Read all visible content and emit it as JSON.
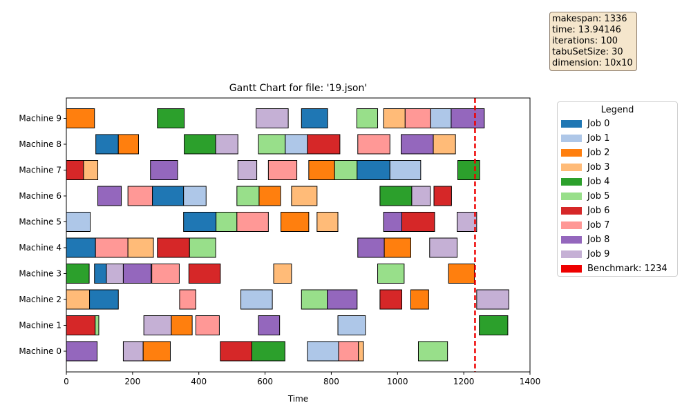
{
  "info": {
    "makespan": "makespan: 1336",
    "time": "time: 13.94146",
    "iterations": "iterations: 100",
    "tabuSetSize": "tabuSetSize: 30",
    "dimension": "dimension: 10x10"
  },
  "legend": {
    "title": "Legend",
    "items": [
      {
        "label": "Job 0",
        "color": "#1f77b4"
      },
      {
        "label": "Job 1",
        "color": "#aec7e8"
      },
      {
        "label": "Job 2",
        "color": "#ff7f0e"
      },
      {
        "label": "Job 3",
        "color": "#ffbb78"
      },
      {
        "label": "Job 4",
        "color": "#2ca02c"
      },
      {
        "label": "Job 5",
        "color": "#98df8a"
      },
      {
        "label": "Job 6",
        "color": "#d62728"
      },
      {
        "label": "Job 7",
        "color": "#ff9896"
      },
      {
        "label": "Job 8",
        "color": "#9467bd"
      },
      {
        "label": "Job 9",
        "color": "#c5b0d5"
      },
      {
        "label": "Benchmark: 1234",
        "color": "#ee0000"
      }
    ]
  },
  "chart_data": {
    "type": "gantt",
    "title": "Gantt Chart for file: '19.json'",
    "xlabel": "Time",
    "ylabel": "",
    "xlim": [
      0,
      1400
    ],
    "xticks": [
      0,
      200,
      400,
      600,
      800,
      1000,
      1200,
      1400
    ],
    "grid": false,
    "legend_position": "outside-right",
    "benchmark": {
      "value": 1234,
      "label": "Benchmark: 1234",
      "color": "#ee0000"
    },
    "job_colors": [
      "#1f77b4",
      "#aec7e8",
      "#ff7f0e",
      "#ffbb78",
      "#2ca02c",
      "#98df8a",
      "#d62728",
      "#ff9896",
      "#9467bd",
      "#c5b0d5"
    ],
    "machines": [
      {
        "label": "Machine 0",
        "tasks": [
          {
            "job": 8,
            "start": 0,
            "end": 93
          },
          {
            "job": 9,
            "start": 172,
            "end": 232
          },
          {
            "job": 2,
            "start": 232,
            "end": 314
          },
          {
            "job": 6,
            "start": 465,
            "end": 560
          },
          {
            "job": 4,
            "start": 560,
            "end": 660
          },
          {
            "job": 1,
            "start": 728,
            "end": 822
          },
          {
            "job": 7,
            "start": 822,
            "end": 882
          },
          {
            "job": 3,
            "start": 882,
            "end": 897
          },
          {
            "job": 5,
            "start": 1063,
            "end": 1151
          }
        ]
      },
      {
        "label": "Machine 1",
        "tasks": [
          {
            "job": 6,
            "start": 0,
            "end": 87
          },
          {
            "job": 5,
            "start": 87,
            "end": 98
          },
          {
            "job": 9,
            "start": 234,
            "end": 317
          },
          {
            "job": 2,
            "start": 317,
            "end": 380
          },
          {
            "job": 7,
            "start": 391,
            "end": 462
          },
          {
            "job": 8,
            "start": 580,
            "end": 644
          },
          {
            "job": 1,
            "start": 820,
            "end": 903
          },
          {
            "job": 4,
            "start": 1247,
            "end": 1333
          }
        ]
      },
      {
        "label": "Machine 2",
        "tasks": [
          {
            "job": 3,
            "start": 0,
            "end": 70
          },
          {
            "job": 0,
            "start": 70,
            "end": 157
          },
          {
            "job": 7,
            "start": 342,
            "end": 391
          },
          {
            "job": 1,
            "start": 527,
            "end": 622
          },
          {
            "job": 5,
            "start": 710,
            "end": 788
          },
          {
            "job": 8,
            "start": 788,
            "end": 878
          },
          {
            "job": 6,
            "start": 947,
            "end": 1013
          },
          {
            "job": 2,
            "start": 1040,
            "end": 1094
          },
          {
            "job": 9,
            "start": 1239,
            "end": 1336
          }
        ]
      },
      {
        "label": "Machine 3",
        "tasks": [
          {
            "job": 4,
            "start": 0,
            "end": 69
          },
          {
            "job": 0,
            "start": 85,
            "end": 121
          },
          {
            "job": 9,
            "start": 121,
            "end": 172
          },
          {
            "job": 8,
            "start": 172,
            "end": 256
          },
          {
            "job": 7,
            "start": 258,
            "end": 341
          },
          {
            "job": 6,
            "start": 370,
            "end": 465
          },
          {
            "job": 3,
            "start": 626,
            "end": 680
          },
          {
            "job": 5,
            "start": 940,
            "end": 1020
          },
          {
            "job": 2,
            "start": 1154,
            "end": 1232
          }
        ]
      },
      {
        "label": "Machine 4",
        "tasks": [
          {
            "job": 0,
            "start": 0,
            "end": 88
          },
          {
            "job": 7,
            "start": 88,
            "end": 186
          },
          {
            "job": 3,
            "start": 186,
            "end": 263
          },
          {
            "job": 6,
            "start": 275,
            "end": 372
          },
          {
            "job": 5,
            "start": 372,
            "end": 451
          },
          {
            "job": 8,
            "start": 880,
            "end": 960
          },
          {
            "job": 2,
            "start": 960,
            "end": 1040
          },
          {
            "job": 9,
            "start": 1097,
            "end": 1180
          }
        ]
      },
      {
        "label": "Machine 5",
        "tasks": [
          {
            "job": 1,
            "start": 0,
            "end": 72
          },
          {
            "job": 0,
            "start": 354,
            "end": 452
          },
          {
            "job": 5,
            "start": 452,
            "end": 515
          },
          {
            "job": 7,
            "start": 515,
            "end": 610
          },
          {
            "job": 2,
            "start": 648,
            "end": 732
          },
          {
            "job": 3,
            "start": 757,
            "end": 820
          },
          {
            "job": 8,
            "start": 958,
            "end": 1013
          },
          {
            "job": 6,
            "start": 1013,
            "end": 1112
          },
          {
            "job": 9,
            "start": 1180,
            "end": 1239
          }
        ]
      },
      {
        "label": "Machine 6",
        "tasks": [
          {
            "job": 8,
            "start": 95,
            "end": 166
          },
          {
            "job": 7,
            "start": 186,
            "end": 260
          },
          {
            "job": 0,
            "start": 260,
            "end": 354
          },
          {
            "job": 1,
            "start": 354,
            "end": 422
          },
          {
            "job": 5,
            "start": 515,
            "end": 582
          },
          {
            "job": 2,
            "start": 582,
            "end": 647
          },
          {
            "job": 3,
            "start": 680,
            "end": 757
          },
          {
            "job": 4,
            "start": 947,
            "end": 1043
          },
          {
            "job": 9,
            "start": 1043,
            "end": 1099
          },
          {
            "job": 6,
            "start": 1110,
            "end": 1163
          }
        ]
      },
      {
        "label": "Machine 7",
        "tasks": [
          {
            "job": 6,
            "start": 0,
            "end": 52
          },
          {
            "job": 3,
            "start": 52,
            "end": 95
          },
          {
            "job": 8,
            "start": 254,
            "end": 336
          },
          {
            "job": 9,
            "start": 518,
            "end": 575
          },
          {
            "job": 7,
            "start": 610,
            "end": 696
          },
          {
            "job": 2,
            "start": 732,
            "end": 810
          },
          {
            "job": 5,
            "start": 810,
            "end": 878
          },
          {
            "job": 0,
            "start": 878,
            "end": 977
          },
          {
            "job": 1,
            "start": 977,
            "end": 1070
          },
          {
            "job": 4,
            "start": 1182,
            "end": 1248
          }
        ]
      },
      {
        "label": "Machine 8",
        "tasks": [
          {
            "job": 0,
            "start": 89,
            "end": 157
          },
          {
            "job": 2,
            "start": 157,
            "end": 218
          },
          {
            "job": 4,
            "start": 356,
            "end": 451
          },
          {
            "job": 9,
            "start": 451,
            "end": 518
          },
          {
            "job": 5,
            "start": 580,
            "end": 661
          },
          {
            "job": 1,
            "start": 661,
            "end": 728
          },
          {
            "job": 6,
            "start": 728,
            "end": 826
          },
          {
            "job": 7,
            "start": 880,
            "end": 977
          },
          {
            "job": 8,
            "start": 1011,
            "end": 1108
          },
          {
            "job": 3,
            "start": 1108,
            "end": 1175
          }
        ]
      },
      {
        "label": "Machine 9",
        "tasks": [
          {
            "job": 2,
            "start": 0,
            "end": 85
          },
          {
            "job": 4,
            "start": 275,
            "end": 356
          },
          {
            "job": 9,
            "start": 573,
            "end": 670
          },
          {
            "job": 0,
            "start": 710,
            "end": 789
          },
          {
            "job": 5,
            "start": 877,
            "end": 940
          },
          {
            "job": 3,
            "start": 958,
            "end": 1023
          },
          {
            "job": 7,
            "start": 1023,
            "end": 1100
          },
          {
            "job": 1,
            "start": 1100,
            "end": 1162
          },
          {
            "job": 8,
            "start": 1162,
            "end": 1262
          }
        ]
      }
    ]
  }
}
